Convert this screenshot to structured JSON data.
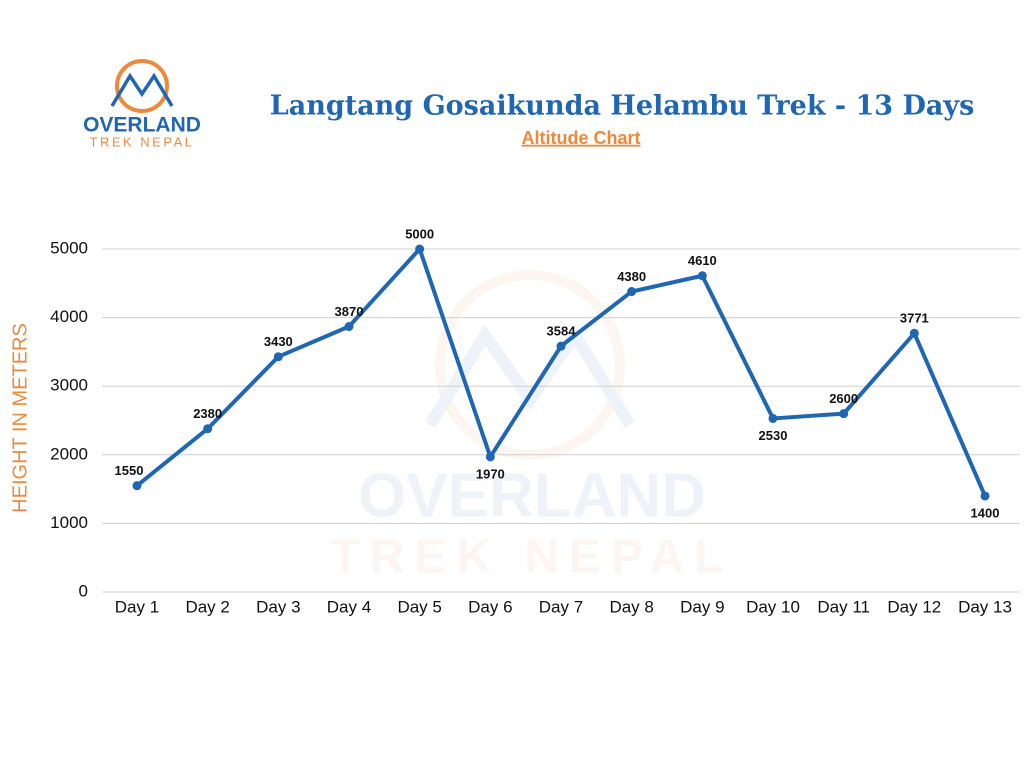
{
  "chart_data": {
    "type": "line",
    "title": "Langtang Gosaikunda Helambu Trek  - 13 Days",
    "subtitle": "Altitude Chart",
    "ylabel": "HEIGHT IN METERS",
    "logo": {
      "name": "OVERLAND",
      "tagline": "TREK NEPAL"
    },
    "categories": [
      "Day 1",
      "Day 2",
      "Day 3",
      "Day 4",
      "Day 5",
      "Day 6",
      "Day 7",
      "Day 8",
      "Day 9",
      "Day 10",
      "Day 11",
      "Day 12",
      "Day 13"
    ],
    "values": [
      1550,
      2380,
      3430,
      3870,
      5000,
      1970,
      3584,
      4380,
      4610,
      2530,
      2600,
      3771,
      1400
    ],
    "color": "#1f66b3",
    "ylim": [
      0,
      5000
    ],
    "yticks": [
      0,
      1000,
      2000,
      3000,
      4000,
      5000
    ],
    "grid": true
  }
}
